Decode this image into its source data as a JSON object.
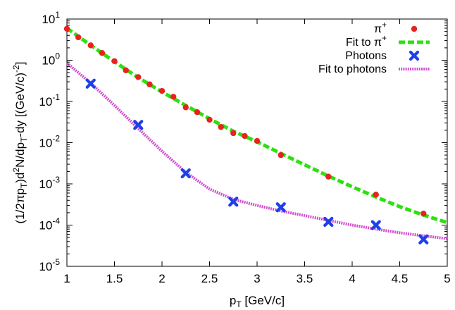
{
  "chart_data": {
    "type": "scatter",
    "xlabel": "p_T [GeV/c]",
    "ylabel": "(1/2πp_T)d^2N/dp_T-dy [(GeV/c)^-2]",
    "xlim": [
      1,
      5
    ],
    "ylim": [
      1e-05,
      10
    ],
    "y_scale": "log",
    "x_ticks": [
      "1",
      "1.5",
      "2",
      "2.5",
      "3",
      "3.5",
      "4",
      "4.5",
      "5"
    ],
    "y_tick_exponents": [
      "1",
      "0",
      "-1",
      "-2",
      "-3",
      "-4",
      "-5"
    ],
    "legend_position": "top-right",
    "series": [
      {
        "name": "π+",
        "kind": "points",
        "color": "#e8231f",
        "marker": "filled-circle",
        "x": [
          1.0,
          1.12,
          1.25,
          1.37,
          1.5,
          1.62,
          1.75,
          1.87,
          2.0,
          2.12,
          2.25,
          2.37,
          2.5,
          2.62,
          2.75,
          2.87,
          3.0,
          3.25,
          3.75,
          4.25,
          4.75
        ],
        "y": [
          5.8,
          3.6,
          2.3,
          1.5,
          0.95,
          0.57,
          0.39,
          0.26,
          0.18,
          0.13,
          0.072,
          0.055,
          0.036,
          0.024,
          0.017,
          0.0145,
          0.011,
          0.005,
          0.0015,
          0.00055,
          0.00019
        ]
      },
      {
        "name": "Fit to π+",
        "kind": "line",
        "color": "#2de00f",
        "style": "dashed",
        "x": [
          1.0,
          1.25,
          1.5,
          1.75,
          2.0,
          2.25,
          2.5,
          2.75,
          3.0,
          3.25,
          3.5,
          3.75,
          4.0,
          4.25,
          4.5,
          4.75,
          5.0
        ],
        "y": [
          6.0,
          2.3,
          0.92,
          0.38,
          0.17,
          0.08,
          0.038,
          0.019,
          0.0105,
          0.0055,
          0.0029,
          0.00155,
          0.00085,
          0.00048,
          0.00028,
          0.000175,
          0.000115
        ]
      },
      {
        "name": "Photons",
        "kind": "points",
        "color": "#1f3fe8",
        "marker": "x-cross",
        "x": [
          1.25,
          1.75,
          2.25,
          2.75,
          3.25,
          3.75,
          4.25,
          4.75
        ],
        "y": [
          0.27,
          0.027,
          0.0018,
          0.00037,
          0.00027,
          0.00012,
          0.0001,
          4.5e-05
        ]
      },
      {
        "name": "Fit to photons",
        "kind": "line",
        "color": "#d14fd1",
        "style": "dotted",
        "x": [
          1.0,
          1.25,
          1.5,
          1.75,
          2.0,
          2.25,
          2.5,
          2.75,
          3.0,
          3.25,
          3.5,
          3.75,
          4.0,
          4.25,
          4.5,
          4.75,
          5.0
        ],
        "y": [
          0.85,
          0.28,
          0.08,
          0.022,
          0.0062,
          0.0019,
          0.00075,
          0.00042,
          0.0003,
          0.00022,
          0.00017,
          0.00013,
          0.0001,
          8e-05,
          6.5e-05,
          5.5e-05,
          4.7e-05
        ]
      }
    ]
  }
}
